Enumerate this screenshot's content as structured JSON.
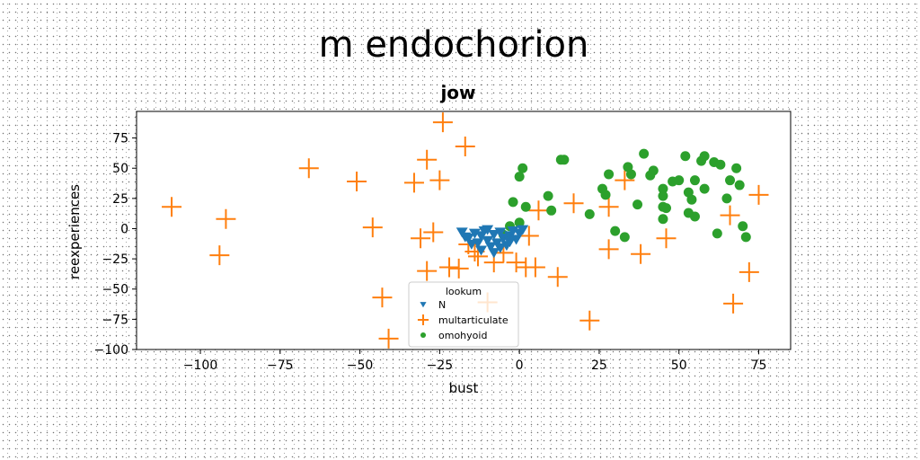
{
  "chart_data": {
    "type": "scatter",
    "suptitle": "m endochorion",
    "title": "jow",
    "xlabel": "bust",
    "ylabel": "reexperiences",
    "xlim": [
      -120,
      85
    ],
    "ylim": [
      -100,
      97
    ],
    "xticks": [
      -100,
      -75,
      -50,
      -25,
      0,
      25,
      50,
      75
    ],
    "yticks": [
      -100,
      -75,
      -50,
      -25,
      0,
      25,
      50,
      75
    ],
    "xtick_labels": [
      "−100",
      "−75",
      "−50",
      "−25",
      "0",
      "25",
      "50",
      "75"
    ],
    "ytick_labels": [
      "−100",
      "−75",
      "−50",
      "−25",
      "0",
      "25",
      "50",
      "75"
    ],
    "grid": false,
    "legend": {
      "title": "lookum",
      "placement": "lower center"
    },
    "series": [
      {
        "name": "N",
        "marker": "triangle-down",
        "color": "#1f77b4",
        "points": [
          [
            -18,
            -3
          ],
          [
            -16,
            -8
          ],
          [
            -14,
            -4
          ],
          [
            -13,
            -12
          ],
          [
            -12,
            -6
          ],
          [
            -11,
            -2
          ],
          [
            -10,
            -10
          ],
          [
            -9,
            -15
          ],
          [
            -8,
            -5
          ],
          [
            -7,
            -12
          ],
          [
            -6,
            -3
          ],
          [
            -5,
            -8
          ],
          [
            -4,
            -14
          ],
          [
            -3,
            -6
          ],
          [
            -2,
            -2
          ],
          [
            -1,
            -9
          ],
          [
            0,
            -4
          ],
          [
            1,
            -1
          ],
          [
            -15,
            -13
          ],
          [
            -12,
            -18
          ],
          [
            -8,
            -20
          ],
          [
            -6,
            -16
          ],
          [
            -3,
            -11
          ],
          [
            -17,
            -7
          ],
          [
            -10,
            -1
          ]
        ]
      },
      {
        "name": "multarticulate",
        "marker": "plus",
        "color": "#ff7f0e",
        "points": [
          [
            -109,
            18
          ],
          [
            -92,
            8
          ],
          [
            -94,
            -22
          ],
          [
            -66,
            50
          ],
          [
            -51,
            39
          ],
          [
            -46,
            1
          ],
          [
            -43,
            -57
          ],
          [
            -41,
            -91
          ],
          [
            -33,
            38
          ],
          [
            -31,
            -8
          ],
          [
            -29,
            57
          ],
          [
            -29,
            -35
          ],
          [
            -27,
            -3
          ],
          [
            -25,
            40
          ],
          [
            -24,
            88
          ],
          [
            -22,
            -32
          ],
          [
            -19,
            -33
          ],
          [
            -17,
            68
          ],
          [
            -16,
            -13
          ],
          [
            -14,
            -19
          ],
          [
            -13,
            -23
          ],
          [
            -10,
            -61
          ],
          [
            -8,
            -28
          ],
          [
            -5,
            -20
          ],
          [
            -1,
            -28
          ],
          [
            2,
            -32
          ],
          [
            3,
            -6
          ],
          [
            5,
            -32
          ],
          [
            6,
            15
          ],
          [
            12,
            -40
          ],
          [
            17,
            21
          ],
          [
            22,
            -76
          ],
          [
            28,
            -17
          ],
          [
            28,
            18
          ],
          [
            33,
            40
          ],
          [
            38,
            -21
          ],
          [
            46,
            -8
          ],
          [
            66,
            11
          ],
          [
            67,
            -62
          ],
          [
            72,
            -36
          ],
          [
            75,
            28
          ]
        ]
      },
      {
        "name": "omohyoid",
        "marker": "circle",
        "color": "#2ca02c",
        "points": [
          [
            0,
            43
          ],
          [
            1,
            50
          ],
          [
            -2,
            22
          ],
          [
            2,
            18
          ],
          [
            -5,
            -5
          ],
          [
            -3,
            2
          ],
          [
            0,
            5
          ],
          [
            9,
            27
          ],
          [
            10,
            15
          ],
          [
            13,
            57
          ],
          [
            14,
            57
          ],
          [
            22,
            12
          ],
          [
            26,
            33
          ],
          [
            27,
            28
          ],
          [
            28,
            45
          ],
          [
            30,
            -2
          ],
          [
            33,
            -7
          ],
          [
            34,
            51
          ],
          [
            35,
            45
          ],
          [
            37,
            20
          ],
          [
            39,
            62
          ],
          [
            41,
            44
          ],
          [
            42,
            48
          ],
          [
            45,
            33
          ],
          [
            45,
            27
          ],
          [
            45,
            18
          ],
          [
            45,
            8
          ],
          [
            46,
            17
          ],
          [
            48,
            39
          ],
          [
            50,
            40
          ],
          [
            52,
            60
          ],
          [
            53,
            13
          ],
          [
            54,
            24
          ],
          [
            55,
            10
          ],
          [
            53,
            30
          ],
          [
            55,
            40
          ],
          [
            57,
            56
          ],
          [
            58,
            33
          ],
          [
            58,
            60
          ],
          [
            61,
            55
          ],
          [
            62,
            -4
          ],
          [
            63,
            53
          ],
          [
            65,
            25
          ],
          [
            66,
            40
          ],
          [
            68,
            50
          ],
          [
            69,
            36
          ],
          [
            70,
            2
          ],
          [
            71,
            -7
          ]
        ]
      }
    ]
  }
}
